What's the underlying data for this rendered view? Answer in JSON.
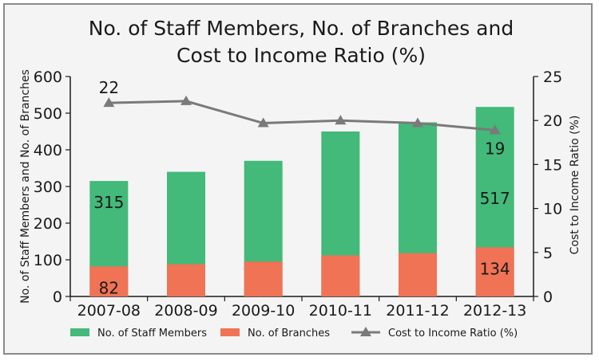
{
  "chart_data": {
    "type": "bar",
    "stacked": true,
    "title_line1": "No. of Staff Members, No. of Branches and",
    "title_line2": "Cost to Income Ratio (%)",
    "categories": [
      "2007-08",
      "2008-09",
      "2009-10",
      "2010-11",
      "2011-12",
      "2012-13"
    ],
    "ylabel_left": "No. of Staff Members and No. of Branches",
    "ylabel_right": "Cost to Income Ratio (%)",
    "ylim_left": [
      0,
      600
    ],
    "yticks_left": [
      "0",
      "100",
      "200",
      "300",
      "400",
      "500",
      "600"
    ],
    "ylim_right": [
      0,
      25
    ],
    "yticks_right": [
      "0",
      "5",
      "10",
      "15",
      "20",
      "25"
    ],
    "series": [
      {
        "name": "No. of Branches",
        "kind": "bar",
        "color": "#f07355",
        "values": [
          82,
          88,
          95,
          112,
          118,
          134
        ]
      },
      {
        "name": "No. of Staff Members",
        "kind": "bar",
        "color": "#43b97a",
        "values": [
          315,
          340,
          370,
          450,
          475,
          517
        ]
      },
      {
        "name": "Cost to Income Ratio (%)",
        "kind": "line",
        "axis": "right",
        "color": "#7a7a7a",
        "values": [
          22,
          22.2,
          19.7,
          20,
          19.7,
          18.9
        ]
      }
    ],
    "data_labels": [
      {
        "series": "No. of Staff Members",
        "index": 0,
        "text": "315"
      },
      {
        "series": "No. of Staff Members",
        "index": 5,
        "text": "517"
      },
      {
        "series": "No. of Branches",
        "index": 0,
        "text": "82"
      },
      {
        "series": "No. of Branches",
        "index": 5,
        "text": "134"
      },
      {
        "series": "Cost to Income Ratio (%)",
        "index": 0,
        "text": "22"
      },
      {
        "series": "Cost to Income Ratio (%)",
        "index": 5,
        "text": "19"
      }
    ],
    "legend": [
      "No. of Staff Members",
      "No. of Branches",
      "Cost to Income Ratio (%)"
    ],
    "legend_position": "bottom"
  }
}
